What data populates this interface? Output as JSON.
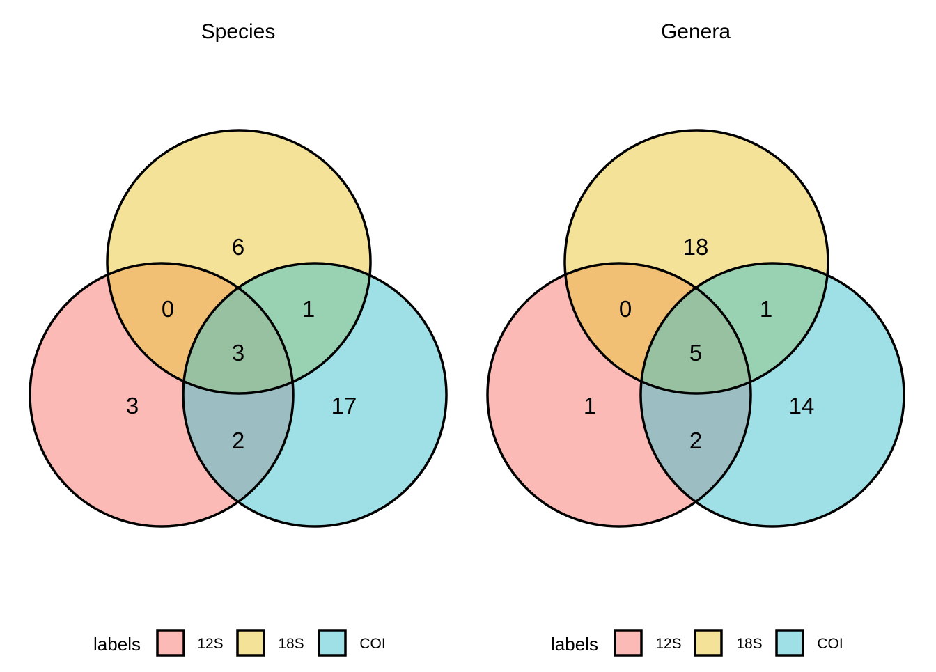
{
  "chart_data": [
    {
      "type": "venn",
      "title": "Species",
      "sets": [
        {
          "name": "12S",
          "color": "#F8766D"
        },
        {
          "name": "18S",
          "color": "#E7C631"
        },
        {
          "name": "COI",
          "color": "#3EC1CD"
        }
      ],
      "regions": {
        "18S_only": 6,
        "12S_18S": 0,
        "18S_COI": 1,
        "12S_18S_COI": 3,
        "12S_only": 3,
        "COI_only": 17,
        "12S_COI": 2
      },
      "legend": {
        "title": "labels",
        "position": "bottom",
        "items": [
          "12S",
          "18S",
          "COI"
        ]
      }
    },
    {
      "type": "venn",
      "title": "Genera",
      "sets": [
        {
          "name": "12S",
          "color": "#F8766D"
        },
        {
          "name": "18S",
          "color": "#E7C631"
        },
        {
          "name": "COI",
          "color": "#3EC1CD"
        }
      ],
      "regions": {
        "18S_only": 18,
        "12S_18S": 0,
        "18S_COI": 1,
        "12S_18S_COI": 5,
        "12S_only": 1,
        "COI_only": 14,
        "12S_COI": 2
      },
      "legend": {
        "title": "labels",
        "position": "bottom",
        "items": [
          "12S",
          "18S",
          "COI"
        ]
      }
    }
  ]
}
